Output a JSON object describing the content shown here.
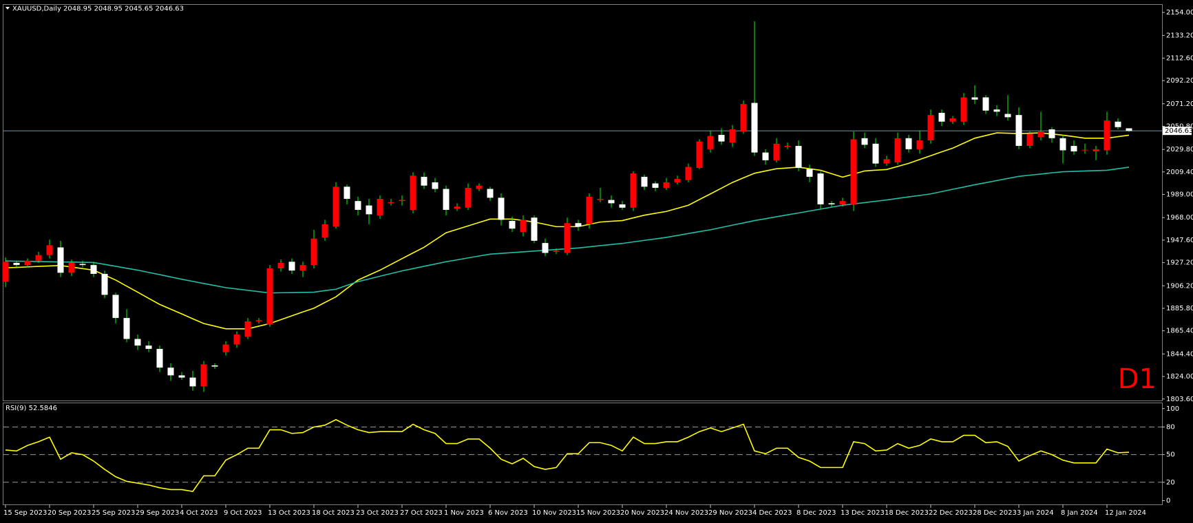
{
  "chart_data": [
    {
      "type": "candlestick",
      "title": "XAUUSD,Daily  2048.95 2048.95 2045.65 2046.63",
      "watermark": "D1",
      "categories": [
        "15 Sep 2023",
        null,
        null,
        null,
        "20 Sep 2023",
        null,
        null,
        null,
        "25 Sep 2023",
        null,
        null,
        null,
        "29 Sep 2023",
        null,
        null,
        null,
        "4 Oct 2023",
        null,
        null,
        null,
        "9 Oct 2023",
        null,
        null,
        null,
        "13 Oct 2023",
        null,
        null,
        null,
        "18 Oct 2023",
        null,
        null,
        null,
        "23 Oct 2023",
        null,
        null,
        null,
        "27 Oct 2023",
        null,
        null,
        null,
        "1 Nov 2023",
        null,
        null,
        null,
        "6 Nov 2023",
        null,
        null,
        null,
        "10 Nov 2023",
        null,
        null,
        null,
        "15 Nov 2023",
        null,
        null,
        null,
        "20 Nov 2023",
        null,
        null,
        null,
        "24 Nov 2023",
        null,
        null,
        null,
        "29 Nov 2023",
        null,
        null,
        null,
        "4 Dec 2023",
        null,
        null,
        null,
        "8 Dec 2023",
        null,
        null,
        null,
        "13 Dec 2023",
        null,
        null,
        null,
        "18 Dec 2023",
        null,
        null,
        null,
        "22 Dec 2023",
        null,
        null,
        null,
        "28 Dec 2023",
        null,
        null,
        null,
        "3 Jan 2024",
        null,
        null,
        null,
        "8 Jan 2024",
        null,
        null,
        null,
        "12 Jan 2024",
        null,
        null
      ],
      "open": [
        1910,
        1927,
        1925,
        1929,
        1934,
        1941,
        1918,
        1926,
        1925,
        1917,
        1898,
        1877,
        1858,
        1852,
        1849,
        1832,
        1825,
        1823,
        1815,
        1834,
        1846,
        1853,
        1860,
        1874,
        1871,
        1922,
        1928,
        1920,
        1925,
        1950,
        1960,
        1996,
        1983,
        1979,
        1970,
        1981,
        1983,
        1975,
        2005,
        2000,
        1994,
        1976,
        1977,
        1994,
        1994,
        1986,
        1965,
        1955,
        1968,
        1945,
        1937,
        1936,
        1963,
        1962,
        1984,
        1984,
        1980,
        1977,
        2005,
        1999,
        1995,
        2000,
        2002,
        2013,
        2030,
        2043,
        2036,
        2046,
        2072,
        2027,
        2020,
        2032,
        2033,
        2012,
        2008,
        1981,
        1980,
        1980,
        2040,
        2035,
        2017,
        2018,
        2040,
        2030,
        2038,
        2063,
        2055,
        2055,
        2077,
        2077,
        2066,
        2062,
        2061,
        2033,
        2041,
        2048,
        2040,
        2033,
        2029,
        2028,
        2029,
        2055,
        2048.95
      ],
      "high": [
        1932,
        1929,
        1931,
        1937,
        1948,
        1947,
        1930,
        1929,
        1928,
        1920,
        1900,
        1885,
        1862,
        1856,
        1852,
        1836,
        1828,
        1829,
        1838,
        1836,
        1856,
        1865,
        1877,
        1877,
        1925,
        1930,
        1931,
        1928,
        1957,
        1966,
        2000,
        1998,
        1987,
        1985,
        1988,
        1985,
        1988,
        2009,
        2009,
        2004,
        1997,
        1981,
        1999,
        1999,
        1996,
        1990,
        1969,
        1970,
        1970,
        1949,
        1940,
        1968,
        1966,
        1990,
        1995,
        1988,
        1983,
        2010,
        2007,
        2001,
        2004,
        2006,
        2017,
        2039,
        2047,
        2049,
        2052,
        2074,
        2146,
        2030,
        2040,
        2036,
        2038,
        2016,
        2010,
        1983,
        1986,
        2046,
        2045,
        2040,
        2024,
        2045,
        2043,
        2047,
        2066,
        2066,
        2060,
        2081,
        2088,
        2079,
        2070,
        2079,
        2068,
        2046,
        2064,
        2050,
        2043,
        2038,
        2035,
        2033,
        2064,
        2058,
        2048.95
      ],
      "low": [
        1905,
        1922,
        1923,
        1927,
        1931,
        1914,
        1915,
        1923,
        1914,
        1895,
        1872,
        1855,
        1848,
        1846,
        1828,
        1820,
        1821,
        1811,
        1810,
        1831,
        1843,
        1850,
        1858,
        1872,
        1869,
        1919,
        1917,
        1914,
        1922,
        1947,
        1958,
        1980,
        1970,
        1962,
        1967,
        1979,
        1979,
        1972,
        1994,
        1991,
        1970,
        1974,
        1975,
        1992,
        1983,
        1961,
        1955,
        1951,
        1945,
        1933,
        1935,
        1934,
        1956,
        1958,
        1982,
        1977,
        1975,
        1974,
        1993,
        1992,
        1993,
        1998,
        2000,
        2012,
        2027,
        2034,
        2032,
        2044,
        2024,
        2016,
        2018,
        2030,
        2010,
        2000,
        1976,
        1978,
        1978,
        1974,
        2031,
        2014,
        2015,
        2016,
        2027,
        2026,
        2035,
        2051,
        2053,
        2052,
        2071,
        2062,
        2060,
        2056,
        2030,
        2031,
        2038,
        2036,
        2017,
        2025,
        2026,
        2020,
        2025,
        2048,
        2045.65
      ],
      "close": [
        1928,
        1925,
        1929,
        1934,
        1943,
        1918,
        1927,
        1925,
        1917,
        1898,
        1877,
        1858,
        1852,
        1849,
        1832,
        1825,
        1823,
        1815,
        1835,
        1833,
        1853,
        1862,
        1874,
        1875,
        1922,
        1927,
        1920,
        1925,
        1949,
        1962,
        1996,
        1985,
        1975,
        1971,
        1985,
        1982,
        1984,
        2006,
        1997,
        1994,
        1975,
        1978,
        1995,
        1997,
        1986,
        1966,
        1958,
        1966,
        1947,
        1936,
        1938,
        1963,
        1960,
        1987,
        1985,
        1981,
        1977,
        2008,
        1996,
        1995,
        2000,
        2003,
        2014,
        2037,
        2042,
        2037,
        2048,
        2071,
        2027,
        2020,
        2035,
        2033,
        2013,
        2005,
        1980,
        1980,
        1983,
        2039,
        2034,
        2017,
        2021,
        2040,
        2030,
        2038,
        2061,
        2055,
        2058,
        2077,
        2075,
        2065,
        2064,
        2059,
        2033,
        2044,
        2046,
        2040,
        2029,
        2028,
        2029.5,
        2030,
        2056,
        2050,
        2046.63
      ],
      "up_color": "#ff0000",
      "down_color": "#ffffff",
      "wick_color": "#00ff00",
      "price_line_color": "#6f9aa8",
      "lines": [
        {
          "color": "#ffff00",
          "values": [
            1922.5,
            1922.9,
            1923.3,
            1923.8,
            1924.2,
            1924.6,
            1923.2,
            1921.8,
            1920.4,
            1915.9,
            1911.4,
            1905.9,
            1900.4,
            1894.8,
            1889.3,
            1885,
            1880.7,
            1876.3,
            1872,
            1869.6,
            1867.2,
            1867.2,
            1867.2,
            1869.6,
            1872,
            1875.5,
            1879,
            1882.5,
            1885.9,
            1891.1,
            1896.2,
            1903.8,
            1911.4,
            1915.9,
            1920.4,
            1925.6,
            1930.8,
            1936,
            1941.1,
            1947.7,
            1954.3,
            1957.4,
            1960.5,
            1963.6,
            1966.7,
            1966.7,
            1966.7,
            1965.4,
            1964,
            1961.9,
            1959.8,
            1959.8,
            1959.8,
            1961.9,
            1964,
            1964.7,
            1965.3,
            1967.8,
            1970.2,
            1971.9,
            1973.6,
            1976.4,
            1979.2,
            1984.4,
            1989.5,
            1994.7,
            1999.9,
            2004.1,
            2008.2,
            2010.3,
            2012.3,
            2013,
            2013.7,
            2012.3,
            2010.9,
            2007.8,
            2004.7,
            2007.5,
            2010.3,
            2011,
            2011.6,
            2014.4,
            2017.2,
            2020.7,
            2024.1,
            2027.6,
            2031,
            2035.5,
            2040,
            2042.4,
            2044.8,
            2044.5,
            2044.1,
            2044.5,
            2044.8,
            2043.8,
            2042.7,
            2041.4,
            2040,
            2040,
            2040,
            2041.4,
            2042.7
          ]
        },
        {
          "color": "#20c0a8",
          "values": [
            1928.7,
            1928.5,
            1928.4,
            1928.2,
            1928,
            1927.8,
            1927.7,
            1927.5,
            1927.3,
            1925.6,
            1923.9,
            1922.1,
            1920.4,
            1918.3,
            1916.3,
            1914.2,
            1912.1,
            1910.2,
            1908.3,
            1906.4,
            1904.5,
            1903.3,
            1902.1,
            1900.9,
            1899.7,
            1899.9,
            1900,
            1900.2,
            1900.4,
            1901.8,
            1903.1,
            1906.6,
            1910,
            1912.4,
            1914.9,
            1917.3,
            1919.7,
            1921.8,
            1923.9,
            1925.9,
            1928,
            1929.7,
            1931.5,
            1933.2,
            1934.9,
            1935.6,
            1936.3,
            1937,
            1937.7,
            1938.4,
            1939.1,
            1939.8,
            1940.5,
            1941.5,
            1942.6,
            1943.6,
            1944.6,
            1946,
            1947.4,
            1948.7,
            1950.1,
            1951.8,
            1953.6,
            1955.3,
            1957,
            1959.1,
            1961.2,
            1963.2,
            1965.3,
            1967,
            1968.8,
            1970.5,
            1972.2,
            1974,
            1975.7,
            1977.5,
            1979.2,
            1980.4,
            1981.6,
            1982.8,
            1984,
            1985.4,
            1986.8,
            1988.1,
            1989.5,
            1991.6,
            1993.7,
            1995.7,
            1997.8,
            1999.7,
            2001.6,
            2003.5,
            2005.4,
            2006.5,
            2007.5,
            2008.6,
            2009.6,
            2009.9,
            2010.3,
            2010.6,
            2010.9,
            2012.3,
            2013.7
          ]
        }
      ],
      "ylim": [
        1802.2,
        2160.9
      ],
      "yticks": [
        {
          "value": 2154,
          "label": "2154.00"
        },
        {
          "value": 2133.2,
          "label": "2133.20"
        },
        {
          "value": 2112.6,
          "label": "2112.60"
        },
        {
          "value": 2092.2,
          "label": "2092.20"
        },
        {
          "value": 2071.2,
          "label": "2071.20"
        },
        {
          "value": 2050.8,
          "label": "2050.80"
        },
        {
          "value": 2029.8,
          "label": "2029.80"
        },
        {
          "value": 2009.4,
          "label": "2009.40"
        },
        {
          "value": 1989,
          "label": "1989.00"
        },
        {
          "value": 1968,
          "label": "1968.00"
        },
        {
          "value": 1947.6,
          "label": "1947.60"
        },
        {
          "value": 1927.2,
          "label": "1927.20"
        },
        {
          "value": 1906.2,
          "label": "1906.20"
        },
        {
          "value": 1885.8,
          "label": "1885.80"
        },
        {
          "value": 1865.4,
          "label": "1865.40"
        },
        {
          "value": 1844.4,
          "label": "1844.40"
        },
        {
          "value": 1824,
          "label": "1824.00"
        },
        {
          "value": 1803.6,
          "label": "1803.60"
        }
      ]
    },
    {
      "type": "line",
      "title": "RSI(9) 52.5846",
      "series": [
        {
          "color": "#ffff00",
          "values": [
            55,
            54,
            60,
            64,
            69,
            45,
            52,
            50,
            43,
            34,
            26,
            21,
            19,
            17,
            14,
            12,
            12,
            10,
            27,
            27,
            44,
            50,
            57,
            57,
            77,
            77,
            73,
            74,
            80,
            82,
            88,
            82,
            77,
            74,
            75,
            75,
            75,
            83,
            77,
            73,
            62,
            62,
            67,
            67,
            57,
            45,
            40,
            46,
            37,
            34,
            36,
            51,
            51,
            63,
            63,
            60,
            54,
            69,
            62,
            62,
            64,
            64,
            69,
            75,
            79,
            75,
            79,
            83,
            54,
            51,
            57,
            57,
            47,
            43,
            36,
            36,
            36,
            64,
            62,
            54,
            55,
            62,
            57,
            60,
            67,
            64,
            64,
            71,
            71,
            63,
            64,
            59,
            43,
            49,
            54,
            50,
            44,
            41,
            41,
            41,
            56,
            52,
            52.5846
          ]
        }
      ],
      "ylim": [
        -4.1,
        105.8
      ],
      "yticks": [
        100,
        80,
        50,
        20,
        0
      ],
      "levels": [
        80,
        50,
        20
      ],
      "level_color": "#9a9a9a"
    }
  ]
}
